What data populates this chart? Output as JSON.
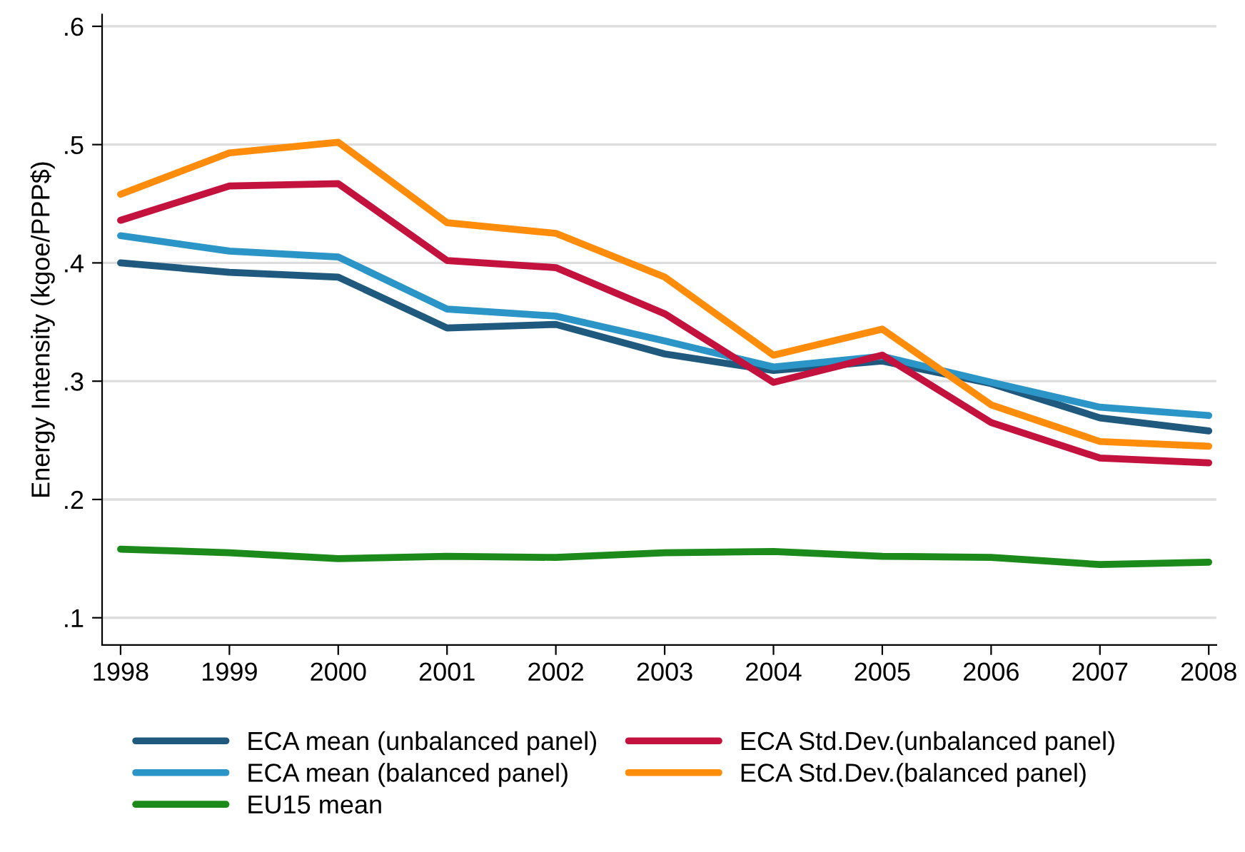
{
  "chart_data": {
    "type": "line",
    "ylabel": "Energy Intensity (kgoe/PPP$)",
    "x": [
      1998,
      1999,
      2000,
      2001,
      2002,
      2003,
      2004,
      2005,
      2006,
      2007,
      2008
    ],
    "series": [
      {
        "name": "ECA mean (unbalanced panel)",
        "color": "#1f5a7e",
        "values": [
          0.4,
          0.392,
          0.388,
          0.345,
          0.348,
          0.323,
          0.309,
          0.317,
          0.298,
          0.269,
          0.258
        ]
      },
      {
        "name": "ECA mean (balanced panel)",
        "color": "#2a95c6",
        "values": [
          0.423,
          0.41,
          0.405,
          0.361,
          0.355,
          0.334,
          0.312,
          0.321,
          0.299,
          0.278,
          0.271
        ]
      },
      {
        "name": "EU15 mean",
        "color": "#1b8a1b",
        "values": [
          0.158,
          0.155,
          0.15,
          0.152,
          0.151,
          0.155,
          0.156,
          0.152,
          0.151,
          0.145,
          0.147
        ]
      },
      {
        "name": "ECA Std.Dev.(unbalanced panel)",
        "color": "#c4123f",
        "values": [
          0.436,
          0.465,
          0.467,
          0.402,
          0.396,
          0.357,
          0.299,
          0.322,
          0.265,
          0.235,
          0.231
        ]
      },
      {
        "name": "ECA Std.Dev.(balanced panel)",
        "color": "#ff8c0a",
        "values": [
          0.458,
          0.493,
          0.502,
          0.434,
          0.425,
          0.388,
          0.322,
          0.344,
          0.28,
          0.249,
          0.245
        ]
      }
    ],
    "xlim": [
      1997.83,
      2008.07
    ],
    "xticks": [
      1998,
      1999,
      2000,
      2001,
      2002,
      2003,
      2004,
      2005,
      2006,
      2007,
      2008
    ],
    "ylim": [
      0.077,
      0.61
    ],
    "yticks": [
      {
        "value": 0.1,
        "label": ".1"
      },
      {
        "value": 0.2,
        "label": ".2"
      },
      {
        "value": 0.3,
        "label": ".3"
      },
      {
        "value": 0.4,
        "label": ".4"
      },
      {
        "value": 0.5,
        "label": ".5"
      },
      {
        "value": 0.6,
        "label": ".6"
      }
    ],
    "grid": "y",
    "legend": "bottom",
    "marker": "none",
    "line_style": "solid"
  }
}
